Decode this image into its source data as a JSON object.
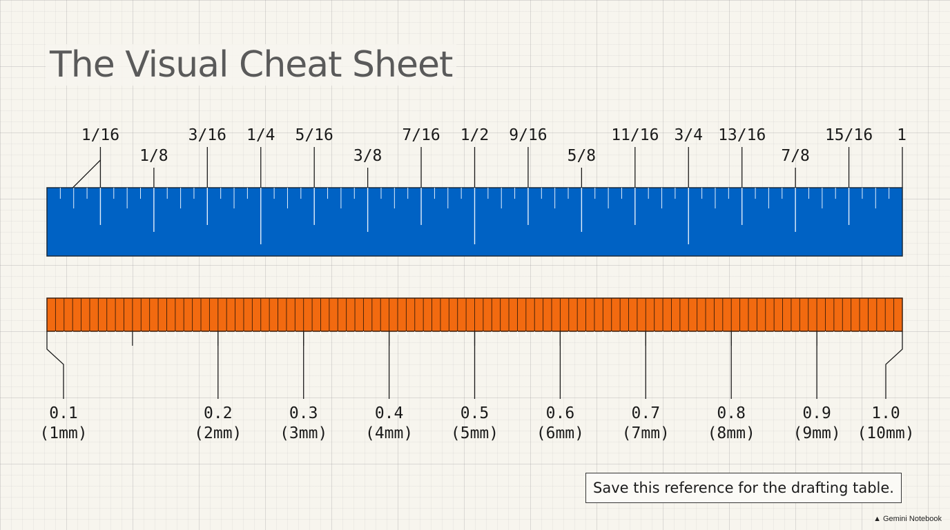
{
  "title": "The Visual Cheat Sheet",
  "colors": {
    "inch_ruler": "#0062c4",
    "mm_ruler": "#f26a10",
    "text": "#1a1a1a",
    "title": "#5a5a5a"
  },
  "inch_ruler": {
    "labels": [
      {
        "value": 0.0625,
        "text": "1/16"
      },
      {
        "value": 0.125,
        "text": "1/8"
      },
      {
        "value": 0.1875,
        "text": "3/16"
      },
      {
        "value": 0.25,
        "text": "1/4"
      },
      {
        "value": 0.3125,
        "text": "5/16"
      },
      {
        "value": 0.375,
        "text": "3/8"
      },
      {
        "value": 0.4375,
        "text": "7/16"
      },
      {
        "value": 0.5,
        "text": "1/2"
      },
      {
        "value": 0.5625,
        "text": "9/16"
      },
      {
        "value": 0.625,
        "text": "5/8"
      },
      {
        "value": 0.6875,
        "text": "11/16"
      },
      {
        "value": 0.75,
        "text": "3/4"
      },
      {
        "value": 0.8125,
        "text": "13/16"
      },
      {
        "value": 0.875,
        "text": "7/8"
      },
      {
        "value": 0.9375,
        "text": "15/16"
      },
      {
        "value": 1,
        "text": "1"
      }
    ]
  },
  "mm_ruler": {
    "labels": [
      {
        "value": 0.1,
        "text": "0.1",
        "sub": "(1mm)"
      },
      {
        "value": 0.2,
        "text": "0.2",
        "sub": "(2mm)"
      },
      {
        "value": 0.3,
        "text": "0.3",
        "sub": "(3mm)"
      },
      {
        "value": 0.4,
        "text": "0.4",
        "sub": "(4mm)"
      },
      {
        "value": 0.5,
        "text": "0.5",
        "sub": "(5mm)"
      },
      {
        "value": 0.6,
        "text": "0.6",
        "sub": "(6mm)"
      },
      {
        "value": 0.7,
        "text": "0.7",
        "sub": "(7mm)"
      },
      {
        "value": 0.8,
        "text": "0.8",
        "sub": "(8mm)"
      },
      {
        "value": 0.9,
        "text": "0.9",
        "sub": "(9mm)"
      },
      {
        "value": 1.0,
        "text": "1.0",
        "sub": "(10mm)"
      }
    ]
  },
  "note": "Save this reference for the drafting table.",
  "brand": {
    "icon": "gemini-sparkle-icon",
    "text": "Gemini Notebook"
  }
}
